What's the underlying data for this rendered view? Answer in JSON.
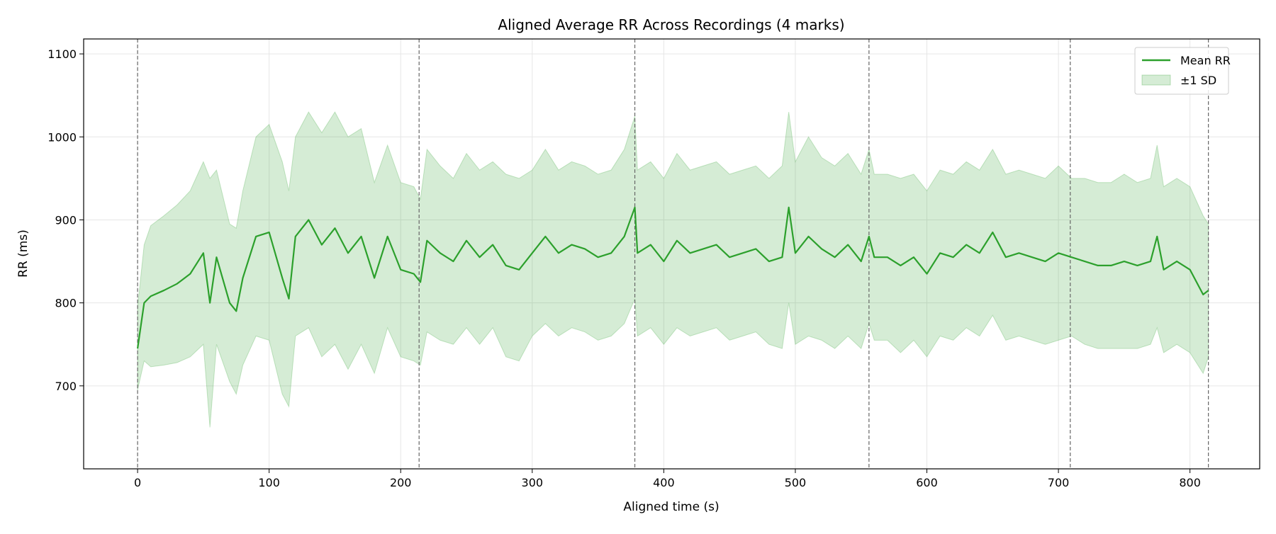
{
  "chart_data": {
    "type": "line",
    "title": "Aligned Average RR Across Recordings (4 marks)",
    "xlabel": "Aligned time (s)",
    "ylabel": "RR (ms)",
    "xlim": [
      -41,
      853
    ],
    "ylim": [
      600,
      1118
    ],
    "xticks": [
      0,
      100,
      200,
      300,
      400,
      500,
      600,
      700,
      800
    ],
    "yticks": [
      700,
      800,
      900,
      1000,
      1100
    ],
    "grid": true,
    "legend_position": "top-right",
    "colors": {
      "line": "#2ca02c",
      "band": "#2ca02c",
      "marks": "#666666"
    },
    "x": [
      0,
      5,
      10,
      20,
      30,
      40,
      50,
      55,
      60,
      70,
      75,
      80,
      90,
      100,
      110,
      115,
      120,
      130,
      140,
      150,
      160,
      170,
      180,
      190,
      200,
      210,
      215,
      220,
      230,
      240,
      250,
      260,
      270,
      280,
      290,
      300,
      310,
      320,
      330,
      340,
      350,
      360,
      370,
      378,
      380,
      390,
      400,
      410,
      420,
      430,
      440,
      450,
      460,
      470,
      480,
      490,
      495,
      500,
      510,
      520,
      530,
      540,
      550,
      556,
      560,
      570,
      580,
      590,
      600,
      610,
      620,
      630,
      640,
      650,
      660,
      670,
      680,
      690,
      700,
      710,
      720,
      730,
      740,
      750,
      760,
      770,
      775,
      780,
      790,
      800,
      810,
      814
    ],
    "series": [
      {
        "name": "Mean RR",
        "values": [
          745,
          800,
          808,
          815,
          823,
          835,
          860,
          800,
          855,
          800,
          790,
          830,
          880,
          885,
          830,
          805,
          880,
          900,
          870,
          890,
          860,
          880,
          830,
          880,
          840,
          835,
          825,
          875,
          860,
          850,
          875,
          855,
          870,
          845,
          840,
          860,
          880,
          860,
          870,
          865,
          855,
          860,
          880,
          915,
          860,
          870,
          850,
          875,
          860,
          865,
          870,
          855,
          860,
          865,
          850,
          855,
          915,
          860,
          880,
          865,
          855,
          870,
          850,
          880,
          855,
          855,
          845,
          855,
          835,
          860,
          855,
          870,
          860,
          885,
          855,
          860,
          855,
          850,
          860,
          855,
          850,
          845,
          845,
          850,
          845,
          850,
          880,
          840,
          850,
          840,
          810,
          815
        ]
      },
      {
        "name": "±1 SD",
        "values": [
          50,
          70,
          85,
          90,
          95,
          100,
          110,
          150,
          105,
          95,
          100,
          105,
          120,
          130,
          140,
          130,
          120,
          130,
          135,
          140,
          140,
          130,
          115,
          110,
          105,
          105,
          100,
          110,
          105,
          100,
          105,
          105,
          100,
          110,
          110,
          100,
          105,
          100,
          100,
          100,
          100,
          100,
          105,
          110,
          100,
          100,
          100,
          105,
          100,
          100,
          100,
          100,
          100,
          100,
          100,
          110,
          115,
          110,
          120,
          110,
          110,
          110,
          105,
          105,
          100,
          100,
          105,
          100,
          100,
          100,
          100,
          100,
          100,
          100,
          100,
          100,
          100,
          100,
          105,
          95,
          100,
          100,
          100,
          105,
          100,
          100,
          110,
          100,
          100,
          100,
          95,
          80
        ]
      }
    ],
    "marks": [
      0,
      214,
      378,
      556,
      709,
      814
    ],
    "legend": [
      "Mean RR",
      "±1 SD"
    ]
  }
}
